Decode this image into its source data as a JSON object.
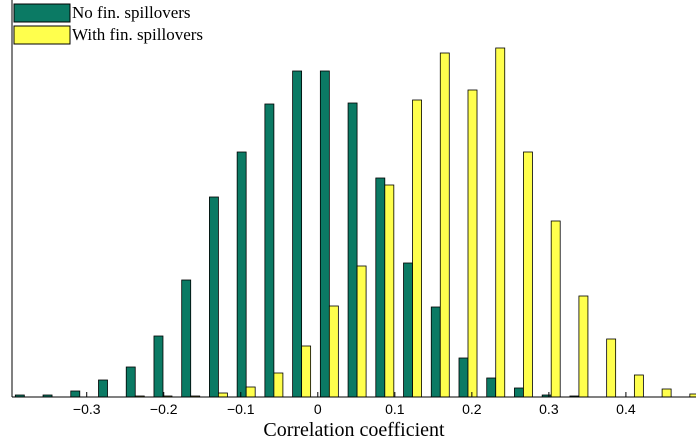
{
  "chart_data": {
    "type": "bar",
    "xlabel": "Correlation coefficient",
    "x": [
      -0.381,
      -0.345,
      -0.309,
      -0.273,
      -0.237,
      -0.201,
      -0.165,
      -0.129,
      -0.093,
      -0.057,
      -0.021,
      0.015,
      0.051,
      0.087,
      0.123,
      0.159,
      0.195,
      0.231,
      0.267,
      0.303,
      0.339,
      0.375,
      0.411,
      0.447,
      0.483
    ],
    "series": [
      {
        "name": "No fin. spillovers",
        "color": "#0b7a64",
        "values": [
          2,
          2,
          6,
          17,
          30,
          61,
          117,
          200,
          245,
          293,
          326,
          326,
          294,
          219,
          134,
          90,
          39,
          19,
          9,
          2,
          1,
          0,
          0,
          0,
          0
        ]
      },
      {
        "name": "With fin. spillovers",
        "color": "#ffff4d",
        "values": [
          0,
          0,
          0,
          0,
          1,
          1,
          1,
          4,
          10,
          24,
          51,
          91,
          131,
          212,
          297,
          344,
          307,
          349,
          245,
          176,
          101,
          58,
          22,
          8,
          3
        ]
      }
    ],
    "xlim": [
      -0.397,
      0.491
    ],
    "ylim": [
      0,
      397
    ],
    "xticks": [
      {
        "value": -0.3,
        "label": "−0.3"
      },
      {
        "value": -0.2,
        "label": "−0.2"
      },
      {
        "value": -0.1,
        "label": "−0.1"
      },
      0,
      0.1,
      0.2,
      0.3,
      0.4
    ],
    "bar_width": 0.0117,
    "legend": "upper left"
  }
}
